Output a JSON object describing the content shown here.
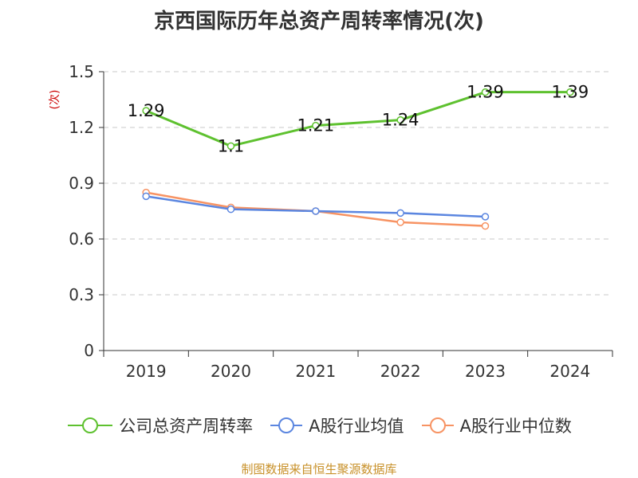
{
  "chart_data": {
    "type": "line",
    "title": "京西国际历年总资产周转率情况(次)",
    "ylabel": "(次)",
    "xlabel": "",
    "categories": [
      "2019",
      "2020",
      "2021",
      "2022",
      "2023",
      "2024"
    ],
    "ylim": [
      0,
      1.5
    ],
    "yticks": [
      "0",
      "0.3",
      "0.6",
      "0.9",
      "1.2",
      "1.5"
    ],
    "grid": true,
    "legend_position": "bottom",
    "series": [
      {
        "name": "公司总资产周转率",
        "color": "#5ec12f",
        "values": [
          1.29,
          1.1,
          1.21,
          1.24,
          1.39,
          1.39
        ],
        "labels": [
          "1.29",
          "1.1",
          "1.21",
          "1.24",
          "1.39",
          "1.39"
        ],
        "show_labels": true
      },
      {
        "name": "A股行业均值",
        "color": "#5b86e0",
        "values": [
          0.83,
          0.76,
          0.75,
          0.74,
          0.72,
          null
        ],
        "show_labels": false
      },
      {
        "name": "A股行业中位数",
        "color": "#f79363",
        "values": [
          0.85,
          0.77,
          0.75,
          0.69,
          0.67,
          null
        ],
        "show_labels": false
      }
    ]
  },
  "source": "制图数据来自恒生聚源数据库",
  "colors": {
    "axis": "#333333",
    "grid": "#c8c8c8",
    "ylabel": "#cc0000",
    "source": "#c8912a"
  }
}
